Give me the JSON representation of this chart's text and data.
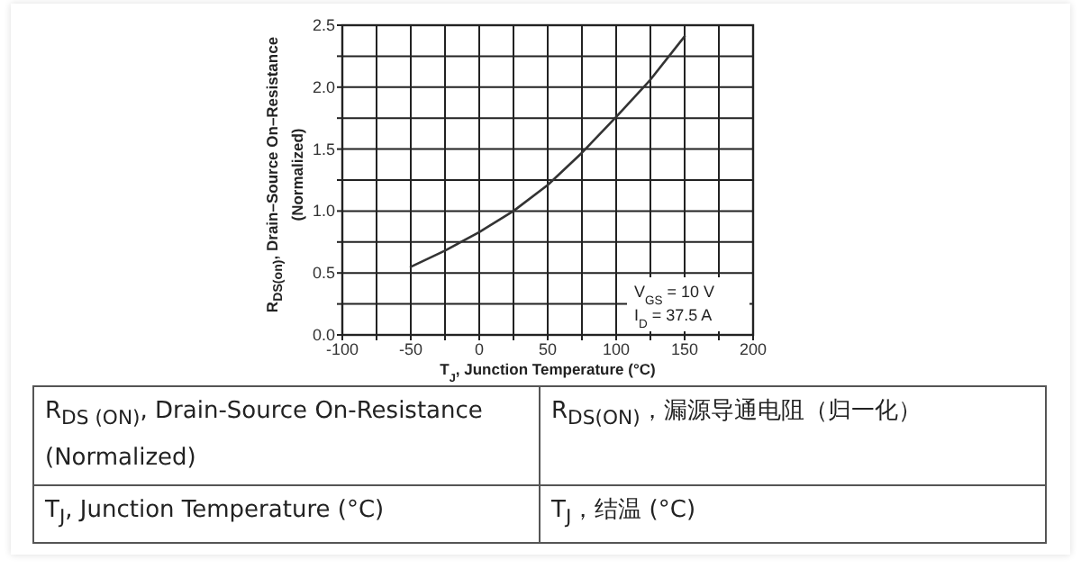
{
  "chart_data": {
    "type": "line",
    "xlabel": "T$_{J}$, Junction Temperature (°C)",
    "ylabel": "R$_{DS(on)}$, Drain–Source On–Resistance (Normalized)",
    "x": [
      -50,
      -25,
      0,
      25,
      50,
      75,
      100,
      125,
      150
    ],
    "series": [
      {
        "color": "#333333",
        "values": [
          0.55,
          0.68,
          0.83,
          1.0,
          1.21,
          1.47,
          1.76,
          2.06,
          2.41
        ]
      }
    ],
    "xlim": [
      -100,
      200
    ],
    "xticks": [
      -100,
      {
        "value": -75,
        "label": null
      },
      -50,
      {
        "value": -25,
        "label": null
      },
      0,
      {
        "value": 25,
        "label": null
      },
      50,
      {
        "value": 75,
        "label": null
      },
      100,
      {
        "value": 125,
        "label": null
      },
      150,
      {
        "value": 175,
        "label": null
      },
      200
    ],
    "ylim": [
      0,
      2.5
    ],
    "yticks": [
      {
        "value": 0,
        "label": "0.0"
      },
      {
        "value": 0.25,
        "label": null
      },
      {
        "value": 0.5,
        "label": "0.5"
      },
      {
        "value": 0.75,
        "label": null
      },
      {
        "value": 1,
        "label": "1.0"
      },
      {
        "value": 1.25,
        "label": null
      },
      {
        "value": 1.5,
        "label": "1.5"
      },
      {
        "value": 1.75,
        "label": null
      },
      {
        "value": 2,
        "label": "2.0"
      },
      {
        "value": 2.25,
        "label": null
      },
      {
        "value": 2.5,
        "label": "2.5"
      }
    ],
    "grid": true,
    "line_style": "solid",
    "annotations": [
      "V$_{GS}$ = 10 V",
      "I$_{D}$ = 37.5 A",
      "R$_{DS (ON)}$, Drain-Source On-Resistance (Normalized)",
      "R$_{DS(ON)}$，漏源导通电阻（归一化）",
      "T$_{J}$, Junction Temperature (°C)",
      "T$_{J}$，结温 (°C)"
    ]
  }
}
